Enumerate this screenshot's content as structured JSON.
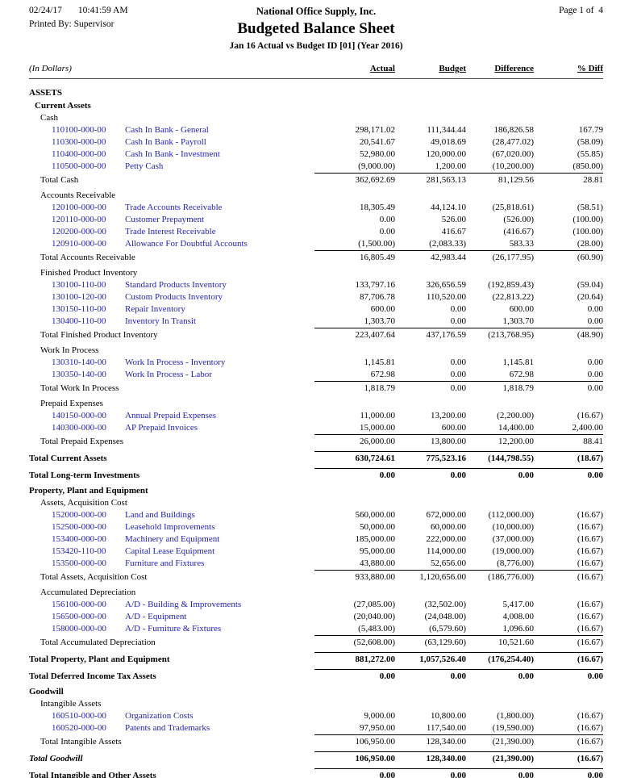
{
  "colors": {
    "link_blue": "#2222bb",
    "text": "#000000",
    "paper": "#ffffff"
  },
  "header": {
    "date": "02/24/17",
    "time": "10:41:59 AM",
    "printed_by": "Printed By: Supervisor",
    "company": "National Office Supply, Inc.",
    "title": "Budgeted Balance Sheet",
    "subtitle": "Jan 16 Actual vs Budget ID [01] (Year 2016)",
    "page": "Page 1 of  4"
  },
  "columns": {
    "in_dollars": "(In Dollars)",
    "actual": "Actual",
    "budget": "Budget",
    "difference": "Difference",
    "pct_diff": "% Diff"
  },
  "rows": [
    {
      "t": "h",
      "l": 0,
      "b": 1,
      "text": "ASSETS"
    },
    {
      "t": "h",
      "l": 1,
      "b": 1,
      "text": "Current Assets"
    },
    {
      "t": "h",
      "l": 2,
      "text": "Cash"
    },
    {
      "t": "a",
      "num": "110100-000-00",
      "name": "Cash In Bank - General",
      "v": [
        "298,171.02",
        "111,344.44",
        "186,826.58",
        "167.79"
      ]
    },
    {
      "t": "a",
      "num": "110300-000-00",
      "name": "Cash In Bank - Payroll",
      "v": [
        "20,541.67",
        "49,018.69",
        "(28,477.02)",
        "(58.09)"
      ]
    },
    {
      "t": "a",
      "num": "110400-000-00",
      "name": "Cash In Bank - Investment",
      "v": [
        "52,980.00",
        "120,000.00",
        "(67,020.00)",
        "(55.85)"
      ]
    },
    {
      "t": "a",
      "num": "110500-000-00",
      "name": "Petty Cash",
      "v": [
        "(9,000.00)",
        "1,200.00",
        "(10,200.00)",
        "(850.00)"
      ]
    },
    {
      "t": "t",
      "l": 2,
      "text": "Total Cash",
      "v": [
        "362,692.69",
        "281,563.13",
        "81,129.56",
        "28.81"
      ]
    },
    {
      "t": "h",
      "l": 2,
      "text": "Accounts Receivable"
    },
    {
      "t": "a",
      "num": "120100-000-00",
      "name": "Trade Accounts Receivable",
      "v": [
        "18,305.49",
        "44,124.10",
        "(25,818.61)",
        "(58.51)"
      ]
    },
    {
      "t": "a",
      "num": "120110-000-00",
      "name": "Customer Prepayment",
      "v": [
        "0.00",
        "526.00",
        "(526.00)",
        "(100.00)"
      ]
    },
    {
      "t": "a",
      "num": "120200-000-00",
      "name": "Trade Interest Receivable",
      "v": [
        "0.00",
        "416.67",
        "(416.67)",
        "(100.00)"
      ]
    },
    {
      "t": "a",
      "num": "120910-000-00",
      "name": "Allowance For Doubtful Accounts",
      "v": [
        "(1,500.00)",
        "(2,083.33)",
        "583.33",
        "(28.00)"
      ]
    },
    {
      "t": "t",
      "l": 2,
      "text": "Total Accounts Receivable",
      "v": [
        "16,805.49",
        "42,983.44",
        "(26,177.95)",
        "(60.90)"
      ]
    },
    {
      "t": "h",
      "l": 2,
      "text": "Finished Product Inventory"
    },
    {
      "t": "a",
      "num": "130100-110-00",
      "name": "Standard Products Inventory",
      "v": [
        "133,797.16",
        "326,656.59",
        "(192,859.43)",
        "(59.04)"
      ]
    },
    {
      "t": "a",
      "num": "130100-120-00",
      "name": "Custom Products Inventory",
      "v": [
        "87,706.78",
        "110,520.00",
        "(22,813.22)",
        "(20.64)"
      ]
    },
    {
      "t": "a",
      "num": "130150-110-00",
      "name": "Repair Inventory",
      "v": [
        "600.00",
        "0.00",
        "600.00",
        "0.00"
      ]
    },
    {
      "t": "a",
      "num": "130400-110-00",
      "name": "Inventory In Transit",
      "v": [
        "1,303.70",
        "0.00",
        "1,303.70",
        "0.00"
      ]
    },
    {
      "t": "t",
      "l": 2,
      "text": "Total Finished Product Inventory",
      "v": [
        "223,407.64",
        "437,176.59",
        "(213,768.95)",
        "(48.90)"
      ]
    },
    {
      "t": "h",
      "l": 2,
      "text": "Work In Process"
    },
    {
      "t": "a",
      "num": "130310-140-00",
      "name": "Work In Process - Inventory",
      "v": [
        "1,145.81",
        "0.00",
        "1,145.81",
        "0.00"
      ]
    },
    {
      "t": "a",
      "num": "130350-140-00",
      "name": "Work In Process - Labor",
      "v": [
        "672.98",
        "0.00",
        "672.98",
        "0.00"
      ]
    },
    {
      "t": "t",
      "l": 2,
      "text": "Total Work In Process",
      "v": [
        "1,818.79",
        "0.00",
        "1,818.79",
        "0.00"
      ]
    },
    {
      "t": "h",
      "l": 2,
      "text": "Prepaid Expenses"
    },
    {
      "t": "a",
      "num": "140150-000-00",
      "name": "Annual Prepaid Expenses",
      "v": [
        "11,000.00",
        "13,200.00",
        "(2,200.00)",
        "(16.67)"
      ]
    },
    {
      "t": "a",
      "num": "140300-000-00",
      "name": "AP Prepaid Invoices",
      "v": [
        "15,000.00",
        "600.00",
        "14,400.00",
        "2,400.00"
      ]
    },
    {
      "t": "t",
      "l": 2,
      "text": "Total Prepaid Expenses",
      "v": [
        "26,000.00",
        "13,800.00",
        "12,200.00",
        "88.41"
      ]
    },
    {
      "t": "t",
      "l": 0,
      "b": 1,
      "text": "Total Current Assets",
      "v": [
        "630,724.61",
        "775,523.16",
        "(144,798.55)",
        "(18.67)"
      ]
    },
    {
      "t": "t",
      "l": 0,
      "b": 1,
      "text": "Total Long-term Investments",
      "v": [
        "0.00",
        "0.00",
        "0.00",
        "0.00"
      ]
    },
    {
      "t": "h",
      "l": 0,
      "b": 1,
      "text": "Property, Plant and Equipment"
    },
    {
      "t": "h",
      "l": 2,
      "text": "Assets, Acquisition Cost"
    },
    {
      "t": "a",
      "num": "152000-000-00",
      "name": "Land and Buildings",
      "v": [
        "560,000.00",
        "672,000.00",
        "(112,000.00)",
        "(16.67)"
      ]
    },
    {
      "t": "a",
      "num": "152500-000-00",
      "name": "Leasehold Improvements",
      "v": [
        "50,000.00",
        "60,000.00",
        "(10,000.00)",
        "(16.67)"
      ]
    },
    {
      "t": "a",
      "num": "153400-000-00",
      "name": "Machinery and Equipment",
      "v": [
        "185,000.00",
        "222,000.00",
        "(37,000.00)",
        "(16.67)"
      ]
    },
    {
      "t": "a",
      "num": "153420-110-00",
      "name": "Capital Lease Equipment",
      "v": [
        "95,000.00",
        "114,000.00",
        "(19,000.00)",
        "(16.67)"
      ]
    },
    {
      "t": "a",
      "num": "153500-000-00",
      "name": "Furniture and Fixtures",
      "v": [
        "43,880.00",
        "52,656.00",
        "(8,776.00)",
        "(16.67)"
      ]
    },
    {
      "t": "t",
      "l": 2,
      "text": "Total Assets, Acquisition Cost",
      "v": [
        "933,880.00",
        "1,120,656.00",
        "(186,776.00)",
        "(16.67)"
      ]
    },
    {
      "t": "h",
      "l": 2,
      "text": "Accumulated Depreciation"
    },
    {
      "t": "a",
      "num": "156100-000-00",
      "name": "A/D - Building & Improvements",
      "v": [
        "(27,085.00)",
        "(32,502.00)",
        "5,417.00",
        "(16.67)"
      ]
    },
    {
      "t": "a",
      "num": "156500-000-00",
      "name": "A/D - Equipment",
      "v": [
        "(20,040.00)",
        "(24,048.00)",
        "4,008.00",
        "(16.67)"
      ]
    },
    {
      "t": "a",
      "num": "158000-000-00",
      "name": "A/D - Furniture & Fixtures",
      "v": [
        "(5,483.00)",
        "(6,579.60)",
        "1,096.60",
        "(16.67)"
      ]
    },
    {
      "t": "t",
      "l": 2,
      "text": "Total Accumulated Depreciation",
      "v": [
        "(52,608.00)",
        "(63,129.60)",
        "10,521.60",
        "(16.67)"
      ]
    },
    {
      "t": "t",
      "l": 0,
      "b": 1,
      "text": "Total Property, Plant and Equipment",
      "v": [
        "881,272.00",
        "1,057,526.40",
        "(176,254.40)",
        "(16.67)"
      ]
    },
    {
      "t": "t",
      "l": 0,
      "b": 1,
      "text": "Total Deferred Income Tax Assets",
      "v": [
        "0.00",
        "0.00",
        "0.00",
        "0.00"
      ]
    },
    {
      "t": "h",
      "l": 0,
      "b": 1,
      "text": "Goodwill"
    },
    {
      "t": "h",
      "l": 2,
      "text": "Intangible Assets"
    },
    {
      "t": "a",
      "num": "160510-000-00",
      "name": "Organization Costs",
      "v": [
        "9,000.00",
        "10,800.00",
        "(1,800.00)",
        "(16.67)"
      ]
    },
    {
      "t": "a",
      "num": "160520-000-00",
      "name": "Patents and Trademarks",
      "v": [
        "97,950.00",
        "117,540.00",
        "(19,590.00)",
        "(16.67)"
      ]
    },
    {
      "t": "t",
      "l": 2,
      "text": "Total Intangible Assets",
      "v": [
        "106,950.00",
        "128,340.00",
        "(21,390.00)",
        "(16.67)"
      ]
    },
    {
      "t": "t",
      "l": 0,
      "b": 1,
      "i": 1,
      "text": "Total Goodwill",
      "v": [
        "106,950.00",
        "128,340.00",
        "(21,390.00)",
        "(16.67)"
      ]
    },
    {
      "t": "t",
      "l": 0,
      "b": 1,
      "text": "Total Intangible and Other Assets",
      "v": [
        "0.00",
        "0.00",
        "0.00",
        "0.00"
      ]
    }
  ]
}
